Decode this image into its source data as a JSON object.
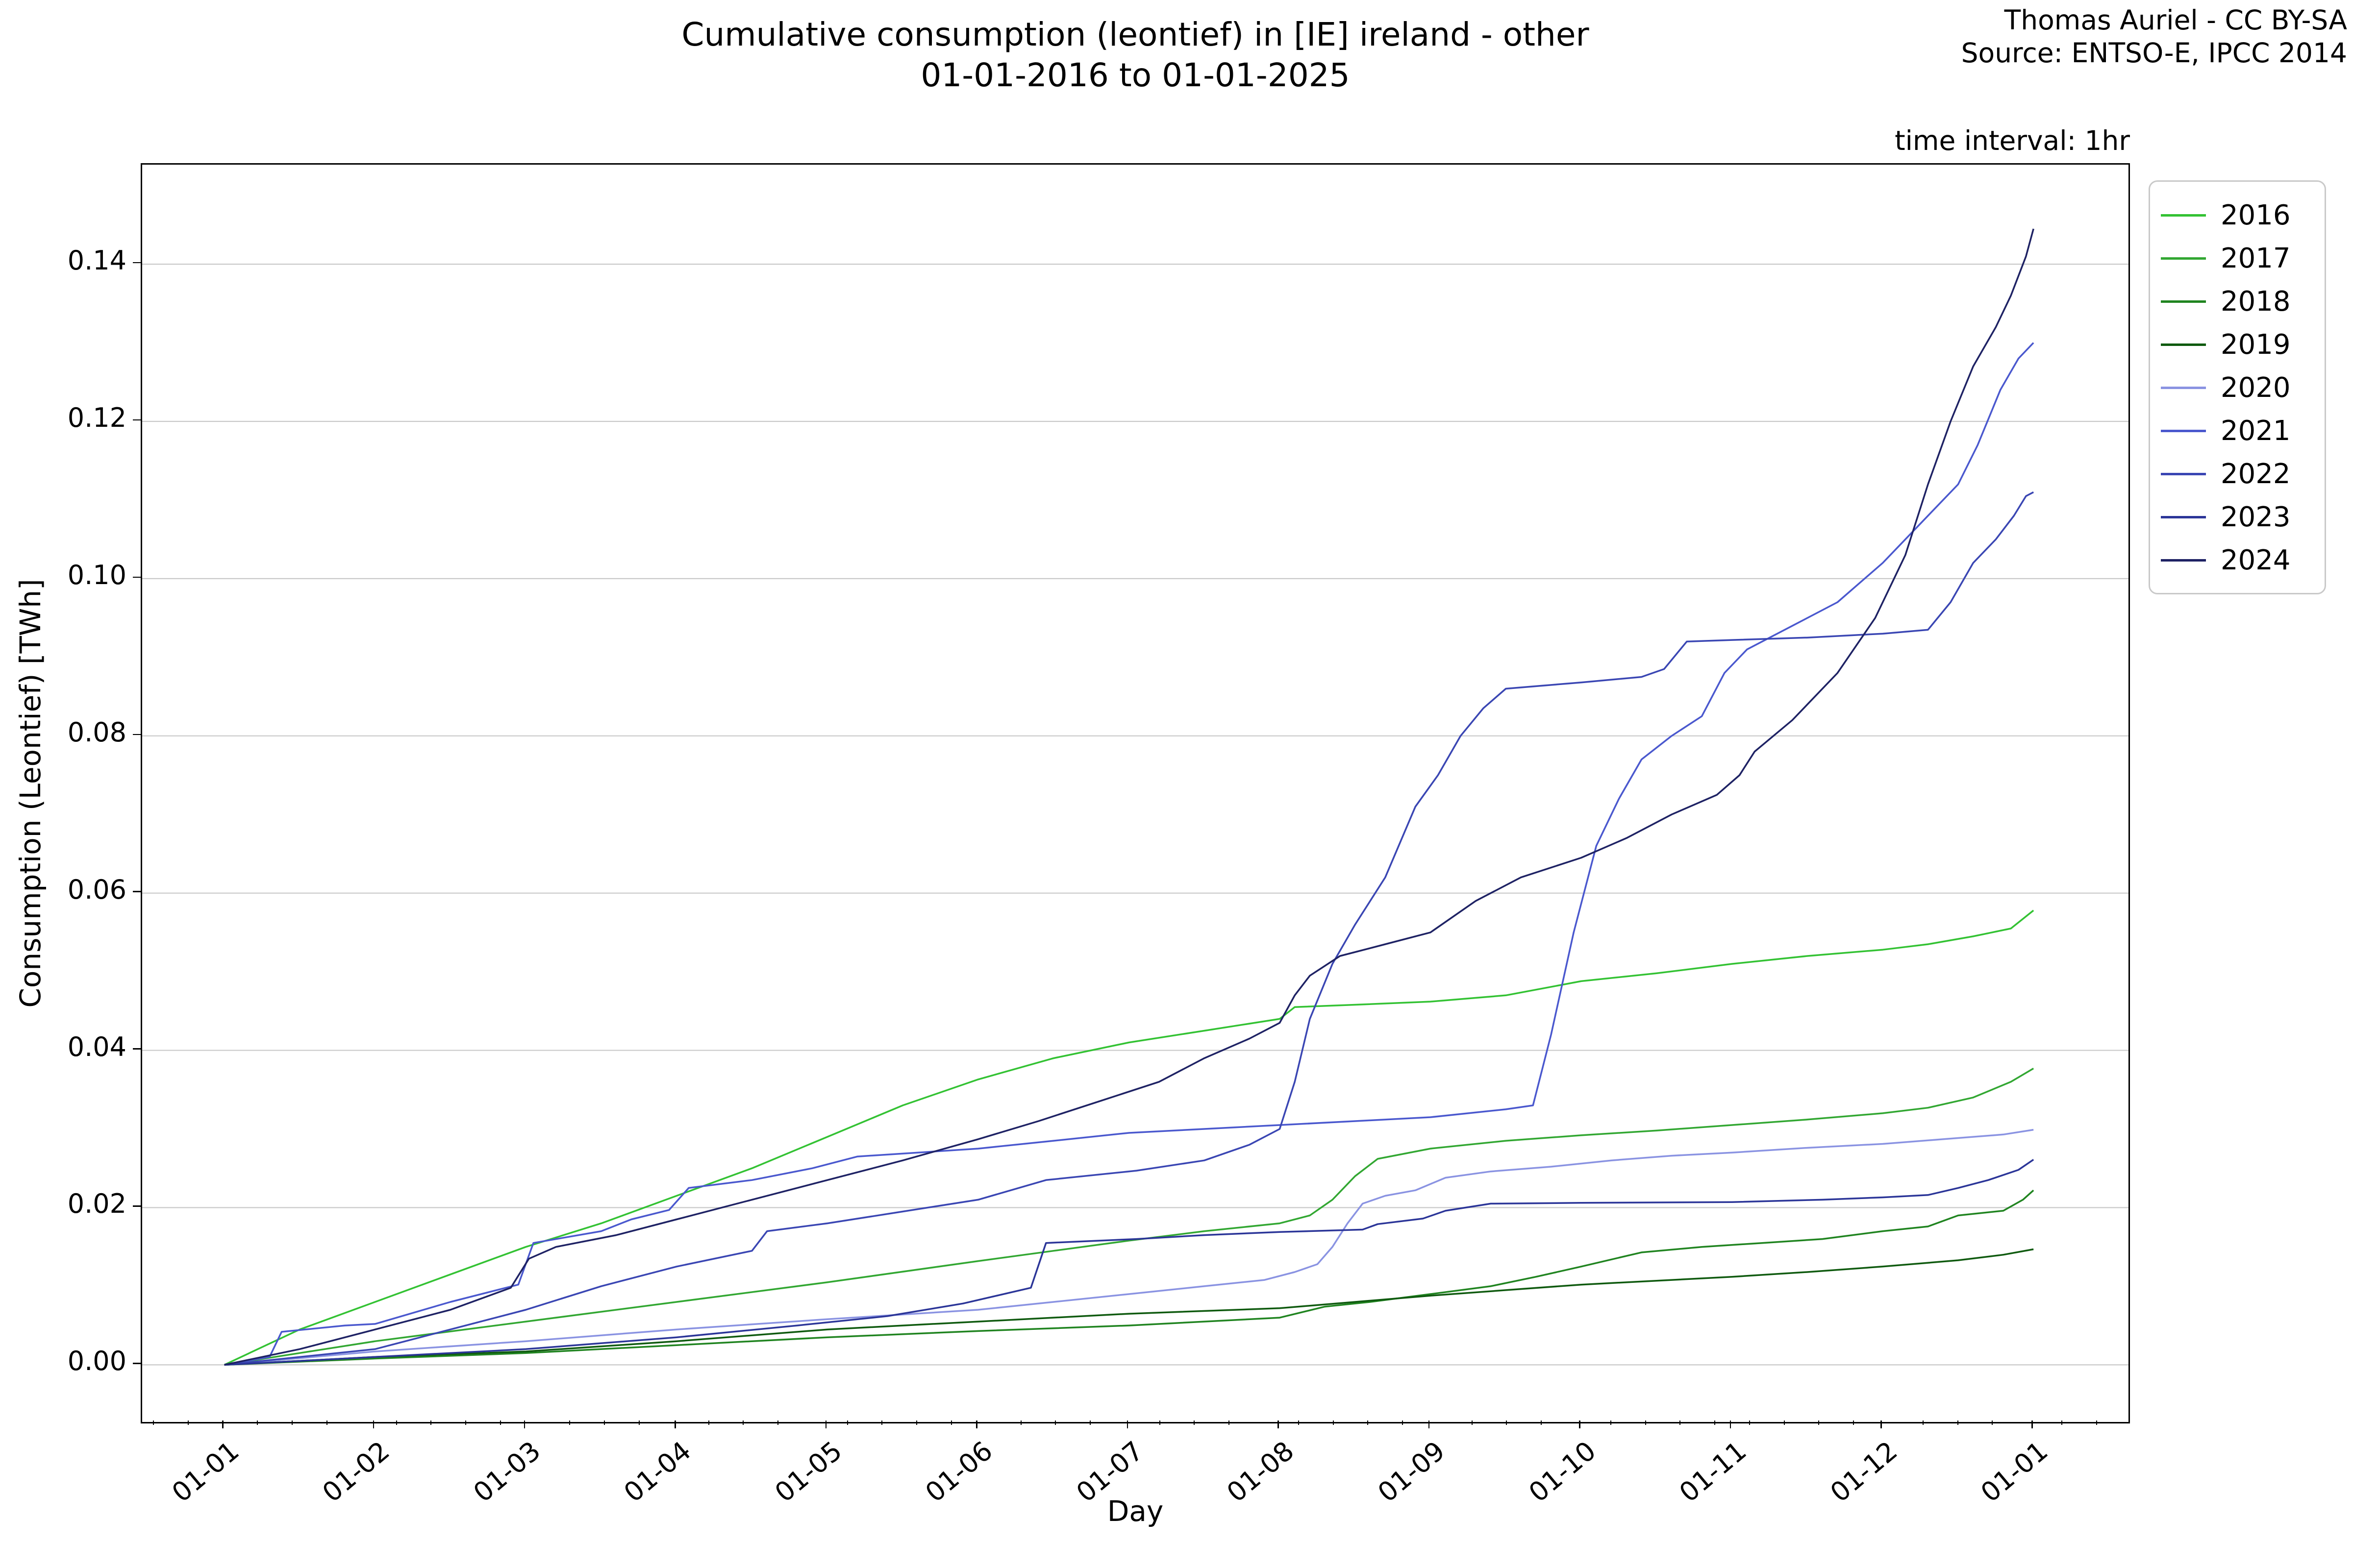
{
  "header": {
    "title_line1": "Cumulative consumption (leontief) in [IE] ireland - other",
    "title_line2": "01-01-2016 to 01-01-2025",
    "attribution_line1": "Thomas Auriel - CC BY-SA",
    "attribution_line2": "Source: ENTSO-E, IPCC 2014",
    "time_interval_label": "time interval: 1hr"
  },
  "chart_data": {
    "type": "line",
    "title": "Cumulative consumption (leontief) in [IE] ireland - other 01-01-2016 to 01-01-2025",
    "xlabel": "Day",
    "ylabel": "Consumption (Leontief) [TWh]",
    "x_unit": "months since Jan 1 (x ticks are month starts, labels formatted 01-MM)",
    "y_unit": "TWh",
    "xlim_months": [
      -0.545,
      12.63
    ],
    "ylim": [
      -0.00727,
      0.15266
    ],
    "x_tick_labels": [
      "01-01",
      "01-02",
      "01-03",
      "01-04",
      "01-05",
      "01-06",
      "01-07",
      "01-08",
      "01-09",
      "01-10",
      "01-11",
      "01-12",
      "01-01"
    ],
    "y_tick_labels": [
      "0.00",
      "0.02",
      "0.04",
      "0.06",
      "0.08",
      "0.10",
      "0.12",
      "0.14"
    ],
    "y_gridline_values": [
      0.0,
      0.02,
      0.04,
      0.06,
      0.08,
      0.1,
      0.12,
      0.14
    ],
    "grid": "horizontal",
    "gridline_color": "#c9c9c9",
    "legend_position": "upper right, outside axes",
    "minor_tick_every_days": 7,
    "series": [
      {
        "name": "2016",
        "color": "#33c233",
        "points": [
          [
            0,
            0
          ],
          [
            0.5,
            0.0045
          ],
          [
            1,
            0.008
          ],
          [
            1.5,
            0.0115
          ],
          [
            2,
            0.015
          ],
          [
            2.5,
            0.018
          ],
          [
            3,
            0.0215
          ],
          [
            3.5,
            0.025
          ],
          [
            4,
            0.029
          ],
          [
            4.5,
            0.033
          ],
          [
            5,
            0.0363
          ],
          [
            5.5,
            0.039
          ],
          [
            6,
            0.041
          ],
          [
            6.5,
            0.0425
          ],
          [
            7,
            0.044
          ],
          [
            7.1,
            0.0455
          ],
          [
            7.5,
            0.0458
          ],
          [
            8,
            0.0462
          ],
          [
            8.5,
            0.047
          ],
          [
            9,
            0.0488
          ],
          [
            9.5,
            0.0498
          ],
          [
            10,
            0.051
          ],
          [
            10.5,
            0.052
          ],
          [
            11,
            0.0528
          ],
          [
            11.3,
            0.0535
          ],
          [
            11.6,
            0.0545
          ],
          [
            11.85,
            0.0555
          ],
          [
            12,
            0.0578
          ]
        ]
      },
      {
        "name": "2017",
        "color": "#32a732",
        "points": [
          [
            0,
            0
          ],
          [
            0.5,
            0.0015
          ],
          [
            1,
            0.003
          ],
          [
            2,
            0.0055
          ],
          [
            3,
            0.008
          ],
          [
            4,
            0.0105
          ],
          [
            5,
            0.0132
          ],
          [
            5.5,
            0.0145
          ],
          [
            6,
            0.0158
          ],
          [
            6.5,
            0.017
          ],
          [
            7,
            0.018
          ],
          [
            7.2,
            0.019
          ],
          [
            7.35,
            0.021
          ],
          [
            7.5,
            0.024
          ],
          [
            7.65,
            0.0262
          ],
          [
            8,
            0.0275
          ],
          [
            8.5,
            0.0285
          ],
          [
            9,
            0.0292
          ],
          [
            9.5,
            0.0298
          ],
          [
            10,
            0.0305
          ],
          [
            10.5,
            0.0312
          ],
          [
            11,
            0.032
          ],
          [
            11.3,
            0.0327
          ],
          [
            11.6,
            0.034
          ],
          [
            11.85,
            0.036
          ],
          [
            12,
            0.0377
          ]
        ]
      },
      {
        "name": "2018",
        "color": "#208420",
        "points": [
          [
            0,
            0
          ],
          [
            1,
            0.0008
          ],
          [
            2,
            0.0015
          ],
          [
            3,
            0.0025
          ],
          [
            4,
            0.0035
          ],
          [
            5,
            0.0043
          ],
          [
            6,
            0.005
          ],
          [
            7,
            0.006
          ],
          [
            7.3,
            0.0074
          ],
          [
            7.6,
            0.008
          ],
          [
            8,
            0.009
          ],
          [
            8.4,
            0.01
          ],
          [
            8.7,
            0.0112
          ],
          [
            9,
            0.0125
          ],
          [
            9.4,
            0.0143
          ],
          [
            9.8,
            0.015
          ],
          [
            10.2,
            0.0155
          ],
          [
            10.6,
            0.016
          ],
          [
            11,
            0.017
          ],
          [
            11.3,
            0.0176
          ],
          [
            11.5,
            0.019
          ],
          [
            11.8,
            0.0196
          ],
          [
            11.93,
            0.021
          ],
          [
            12,
            0.0222
          ]
        ]
      },
      {
        "name": "2019",
        "color": "#0f5a0f",
        "points": [
          [
            0,
            0
          ],
          [
            1,
            0.001
          ],
          [
            2,
            0.0017
          ],
          [
            3,
            0.003
          ],
          [
            4,
            0.0045
          ],
          [
            5,
            0.0055
          ],
          [
            6,
            0.0065
          ],
          [
            7,
            0.0072
          ],
          [
            7.5,
            0.008
          ],
          [
            8,
            0.0088
          ],
          [
            8.5,
            0.0095
          ],
          [
            9,
            0.0102
          ],
          [
            9.5,
            0.0107
          ],
          [
            10,
            0.0112
          ],
          [
            10.5,
            0.0118
          ],
          [
            11,
            0.0125
          ],
          [
            11.5,
            0.0133
          ],
          [
            11.8,
            0.014
          ],
          [
            12,
            0.0147
          ]
        ]
      },
      {
        "name": "2020",
        "color": "#8a93e2",
        "points": [
          [
            0,
            0
          ],
          [
            1,
            0.0017
          ],
          [
            2,
            0.003
          ],
          [
            3,
            0.0045
          ],
          [
            4,
            0.0058
          ],
          [
            5,
            0.007
          ],
          [
            5.5,
            0.008
          ],
          [
            6,
            0.009
          ],
          [
            6.5,
            0.01
          ],
          [
            6.9,
            0.0108
          ],
          [
            7.1,
            0.0118
          ],
          [
            7.25,
            0.0128
          ],
          [
            7.35,
            0.015
          ],
          [
            7.45,
            0.018
          ],
          [
            7.55,
            0.0205
          ],
          [
            7.7,
            0.0215
          ],
          [
            7.9,
            0.0222
          ],
          [
            8.1,
            0.0238
          ],
          [
            8.4,
            0.0246
          ],
          [
            8.8,
            0.0252
          ],
          [
            9.2,
            0.026
          ],
          [
            9.6,
            0.0266
          ],
          [
            10,
            0.027
          ],
          [
            10.5,
            0.0276
          ],
          [
            11,
            0.0281
          ],
          [
            11.4,
            0.0287
          ],
          [
            11.8,
            0.0293
          ],
          [
            12,
            0.0299
          ]
        ]
      },
      {
        "name": "2021",
        "color": "#4a58ce",
        "points": [
          [
            0,
            0
          ],
          [
            0.3,
            0.001
          ],
          [
            0.38,
            0.0042
          ],
          [
            0.8,
            0.005
          ],
          [
            1,
            0.0052
          ],
          [
            1.5,
            0.008
          ],
          [
            1.95,
            0.0102
          ],
          [
            2.05,
            0.0155
          ],
          [
            2.5,
            0.017
          ],
          [
            2.7,
            0.0185
          ],
          [
            2.95,
            0.0197
          ],
          [
            3.08,
            0.0225
          ],
          [
            3.5,
            0.0235
          ],
          [
            3.9,
            0.025
          ],
          [
            4.2,
            0.0265
          ],
          [
            4.6,
            0.027
          ],
          [
            5,
            0.0275
          ],
          [
            5.5,
            0.0285
          ],
          [
            6,
            0.0295
          ],
          [
            6.5,
            0.03
          ],
          [
            7,
            0.0305
          ],
          [
            7.5,
            0.031
          ],
          [
            8,
            0.0315
          ],
          [
            8.5,
            0.0325
          ],
          [
            8.68,
            0.033
          ],
          [
            8.8,
            0.042
          ],
          [
            8.95,
            0.055
          ],
          [
            9.1,
            0.066
          ],
          [
            9.25,
            0.072
          ],
          [
            9.4,
            0.077
          ],
          [
            9.6,
            0.08
          ],
          [
            9.8,
            0.0825
          ],
          [
            9.95,
            0.088
          ],
          [
            10.1,
            0.091
          ],
          [
            10.4,
            0.094
          ],
          [
            10.7,
            0.097
          ],
          [
            11,
            0.102
          ],
          [
            11.3,
            0.108
          ],
          [
            11.5,
            0.112
          ],
          [
            11.63,
            0.117
          ],
          [
            11.78,
            0.124
          ],
          [
            11.9,
            0.128
          ],
          [
            12,
            0.13
          ]
        ]
      },
      {
        "name": "2022",
        "color": "#3a46b3",
        "points": [
          [
            0,
            0
          ],
          [
            1,
            0.002
          ],
          [
            2,
            0.007
          ],
          [
            2.5,
            0.01
          ],
          [
            3,
            0.0125
          ],
          [
            3.5,
            0.0145
          ],
          [
            3.6,
            0.017
          ],
          [
            4,
            0.018
          ],
          [
            4.5,
            0.0195
          ],
          [
            5,
            0.021
          ],
          [
            5.45,
            0.0235
          ],
          [
            6.05,
            0.0247
          ],
          [
            6.5,
            0.026
          ],
          [
            6.8,
            0.028
          ],
          [
            7,
            0.03
          ],
          [
            7.1,
            0.036
          ],
          [
            7.2,
            0.044
          ],
          [
            7.35,
            0.051
          ],
          [
            7.5,
            0.056
          ],
          [
            7.7,
            0.062
          ],
          [
            7.9,
            0.071
          ],
          [
            8.05,
            0.075
          ],
          [
            8.2,
            0.08
          ],
          [
            8.35,
            0.0835
          ],
          [
            8.5,
            0.086
          ],
          [
            9,
            0.0868
          ],
          [
            9.4,
            0.0875
          ],
          [
            9.55,
            0.0885
          ],
          [
            9.7,
            0.092
          ],
          [
            10,
            0.0922
          ],
          [
            10.5,
            0.0925
          ],
          [
            11,
            0.093
          ],
          [
            11.3,
            0.0935
          ],
          [
            11.45,
            0.097
          ],
          [
            11.6,
            0.102
          ],
          [
            11.75,
            0.105
          ],
          [
            11.87,
            0.108
          ],
          [
            11.95,
            0.1105
          ],
          [
            12,
            0.111
          ]
        ]
      },
      {
        "name": "2023",
        "color": "#2b3598",
        "points": [
          [
            0,
            0
          ],
          [
            1,
            0.001
          ],
          [
            2,
            0.002
          ],
          [
            3,
            0.0035
          ],
          [
            3.8,
            0.005
          ],
          [
            4.4,
            0.0062
          ],
          [
            4.9,
            0.0078
          ],
          [
            5.35,
            0.0098
          ],
          [
            5.45,
            0.0155
          ],
          [
            6.05,
            0.016
          ],
          [
            6.5,
            0.0165
          ],
          [
            7,
            0.0169
          ],
          [
            7.55,
            0.0172
          ],
          [
            7.65,
            0.0179
          ],
          [
            7.95,
            0.0186
          ],
          [
            8.1,
            0.0196
          ],
          [
            8.4,
            0.0205
          ],
          [
            9,
            0.0206
          ],
          [
            10,
            0.0207
          ],
          [
            10.6,
            0.021
          ],
          [
            11,
            0.0213
          ],
          [
            11.3,
            0.0216
          ],
          [
            11.5,
            0.0225
          ],
          [
            11.7,
            0.0235
          ],
          [
            11.9,
            0.0248
          ],
          [
            12,
            0.0261
          ]
        ]
      },
      {
        "name": "2024",
        "color": "#1e2264",
        "points": [
          [
            0,
            0
          ],
          [
            0.5,
            0.002
          ],
          [
            1,
            0.0045
          ],
          [
            1.5,
            0.007
          ],
          [
            1.9,
            0.0098
          ],
          [
            2.02,
            0.0135
          ],
          [
            2.2,
            0.015
          ],
          [
            2.6,
            0.0165
          ],
          [
            3,
            0.0185
          ],
          [
            3.5,
            0.021
          ],
          [
            4,
            0.0235
          ],
          [
            4.5,
            0.026
          ],
          [
            5,
            0.0287
          ],
          [
            5.4,
            0.031
          ],
          [
            5.8,
            0.0335
          ],
          [
            6.2,
            0.036
          ],
          [
            6.5,
            0.039
          ],
          [
            6.8,
            0.0415
          ],
          [
            7,
            0.0435
          ],
          [
            7.1,
            0.047
          ],
          [
            7.2,
            0.0495
          ],
          [
            7.4,
            0.052
          ],
          [
            7.7,
            0.0535
          ],
          [
            8,
            0.055
          ],
          [
            8.3,
            0.059
          ],
          [
            8.6,
            0.062
          ],
          [
            9,
            0.0645
          ],
          [
            9.3,
            0.067
          ],
          [
            9.6,
            0.07
          ],
          [
            9.9,
            0.0725
          ],
          [
            10.05,
            0.075
          ],
          [
            10.15,
            0.078
          ],
          [
            10.4,
            0.082
          ],
          [
            10.7,
            0.088
          ],
          [
            10.95,
            0.095
          ],
          [
            11.15,
            0.103
          ],
          [
            11.3,
            0.112
          ],
          [
            11.45,
            0.12
          ],
          [
            11.6,
            0.127
          ],
          [
            11.75,
            0.132
          ],
          [
            11.85,
            0.136
          ],
          [
            11.95,
            0.141
          ],
          [
            12,
            0.1445
          ]
        ]
      }
    ]
  }
}
